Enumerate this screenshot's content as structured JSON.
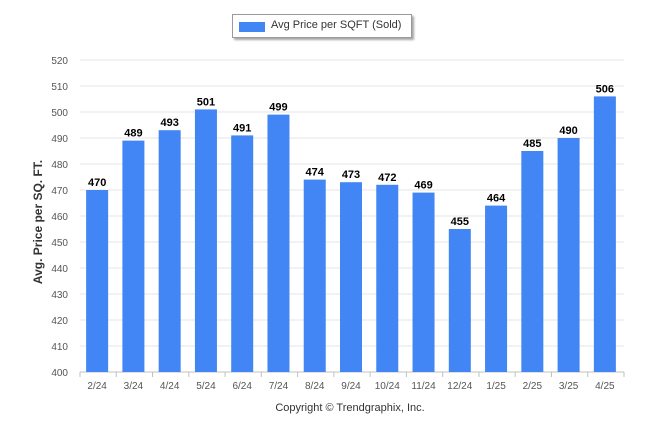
{
  "legend": {
    "label": "Avg Price per SQFT (Sold)"
  },
  "footer": {
    "copyright": "Copyright © Trendgraphix, Inc."
  },
  "colors": {
    "bar": "#4285f4",
    "grid": "#e6e6e6",
    "axis": "#c0c0c0"
  },
  "chart_data": {
    "type": "bar",
    "title": "",
    "xlabel": "",
    "ylabel": "Avg. Price per SQ. FT.",
    "ylim": [
      400,
      520
    ],
    "yticks": [
      400,
      410,
      420,
      430,
      440,
      450,
      460,
      470,
      480,
      490,
      500,
      510,
      520
    ],
    "grid": true,
    "legend_position": "top-center",
    "categories": [
      "2/24",
      "3/24",
      "4/24",
      "5/24",
      "6/24",
      "7/24",
      "8/24",
      "9/24",
      "10/24",
      "11/24",
      "12/24",
      "1/25",
      "2/25",
      "3/25",
      "4/25"
    ],
    "series": [
      {
        "name": "Avg Price per SQFT (Sold)",
        "values": [
          470,
          489,
          493,
          501,
          491,
          499,
          474,
          473,
          472,
          469,
          455,
          464,
          485,
          490,
          506
        ]
      }
    ]
  }
}
